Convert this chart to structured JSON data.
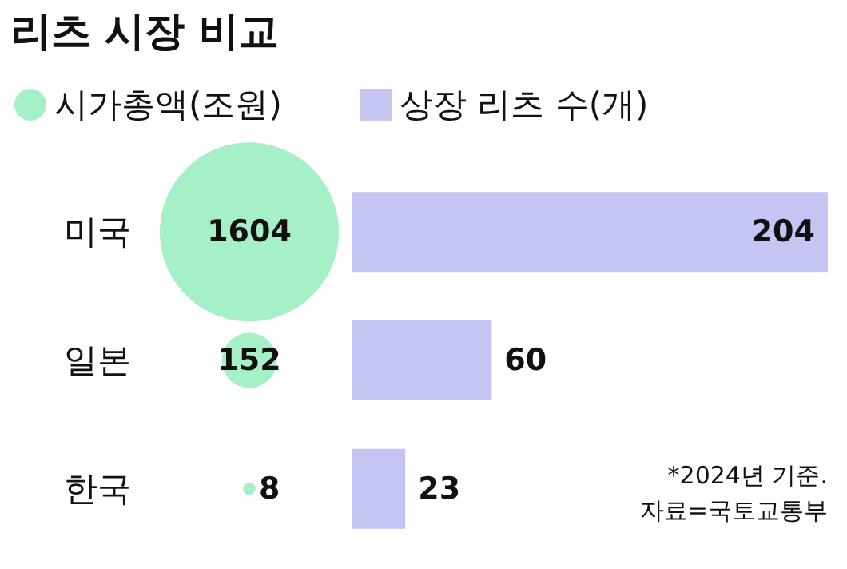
{
  "chart_data": [
    {
      "type": "other",
      "title": "리츠 시장 비교",
      "categories": [
        "미국",
        "일본",
        "한국"
      ],
      "series": [
        {
          "name": "시가총액(조원)",
          "color": "#a6f0c8",
          "values": [
            1604,
            152,
            8
          ]
        }
      ],
      "data_labels": true,
      "legend": "top left"
    },
    {
      "type": "bar",
      "orientation": "horizontal",
      "categories": [
        null,
        null,
        null
      ],
      "tick_labels": false,
      "series": [
        {
          "name": "상장 리츠 수(개)",
          "color": "#c5c5f3",
          "values": [
            204,
            60,
            23
          ]
        }
      ],
      "data_labels": true,
      "legend": "top left",
      "annotations": [
        "*2024년 기준.",
        "자료=국토교통부"
      ]
    }
  ]
}
